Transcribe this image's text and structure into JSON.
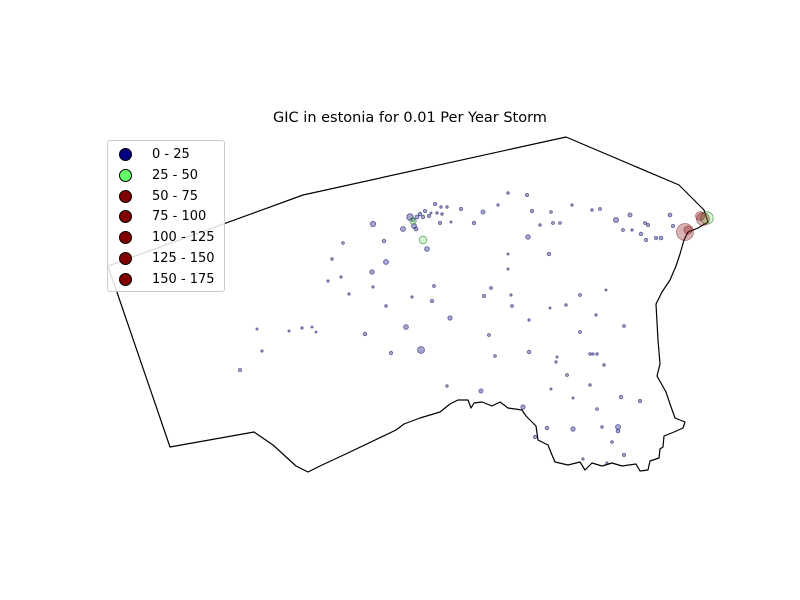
{
  "title": "GIC in estonia for 0.01 Per Year Storm",
  "colors": {
    "outline": "#000000",
    "low": "#000080",
    "mid": "#66ff66",
    "high": "#800000"
  },
  "legend": {
    "items": [
      {
        "label": "0 - 25",
        "color": "#000080"
      },
      {
        "label": "25 - 50",
        "color": "#66ff66"
      },
      {
        "label": "50 - 75",
        "color": "#800000"
      },
      {
        "label": "75 - 100",
        "color": "#800000"
      },
      {
        "label": "100 - 125",
        "color": "#800000"
      },
      {
        "label": "125 - 150",
        "color": "#800000"
      },
      {
        "label": "150 - 175",
        "color": "#800000"
      }
    ]
  }
}
